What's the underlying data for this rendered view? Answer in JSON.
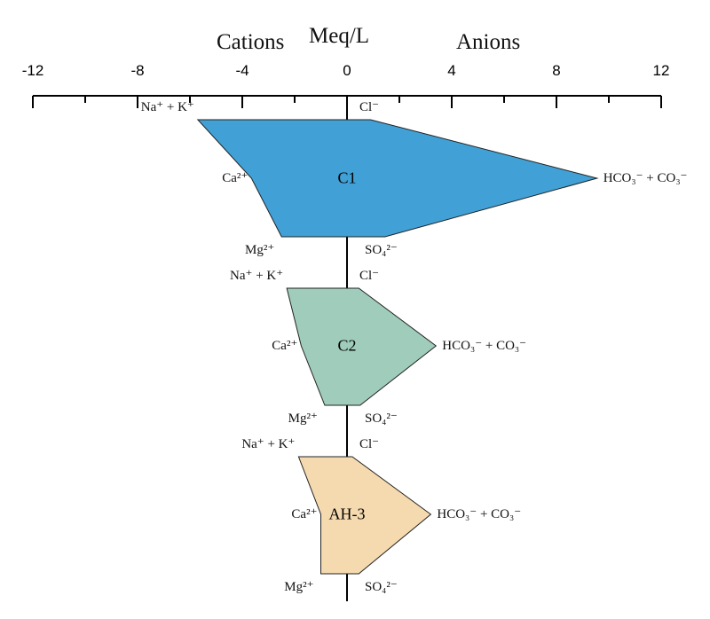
{
  "chart_data": {
    "type": "stiff",
    "title_left": "Cations",
    "title_center": "Meq/L",
    "title_right": "Anions",
    "xlim": [
      -12,
      12
    ],
    "major_ticks": [
      -12,
      -8,
      -4,
      0,
      4,
      8,
      12
    ],
    "minor_step": 2,
    "ions": {
      "cations": [
        "Na⁺ + K⁺",
        "Ca²⁺",
        "Mg²⁺"
      ],
      "anions": [
        "Cl⁻",
        "HCO₃⁻ + CO₃⁻",
        "SO₄²⁻"
      ]
    },
    "samples": [
      {
        "name": "C1",
        "color": "#41a0d5",
        "cations": [
          -5.7,
          -3.65,
          -2.5
        ],
        "anions": [
          0.9,
          9.55,
          1.45
        ]
      },
      {
        "name": "C2",
        "color": "#a0cdbb",
        "cations": [
          -2.3,
          -1.75,
          -0.85
        ],
        "anions": [
          0.45,
          3.4,
          0.5
        ]
      },
      {
        "name": "AH-3",
        "color": "#f5dab0",
        "cations": [
          -1.85,
          -1.0,
          -1.0
        ],
        "anions": [
          0.2,
          3.2,
          0.45
        ]
      }
    ]
  }
}
